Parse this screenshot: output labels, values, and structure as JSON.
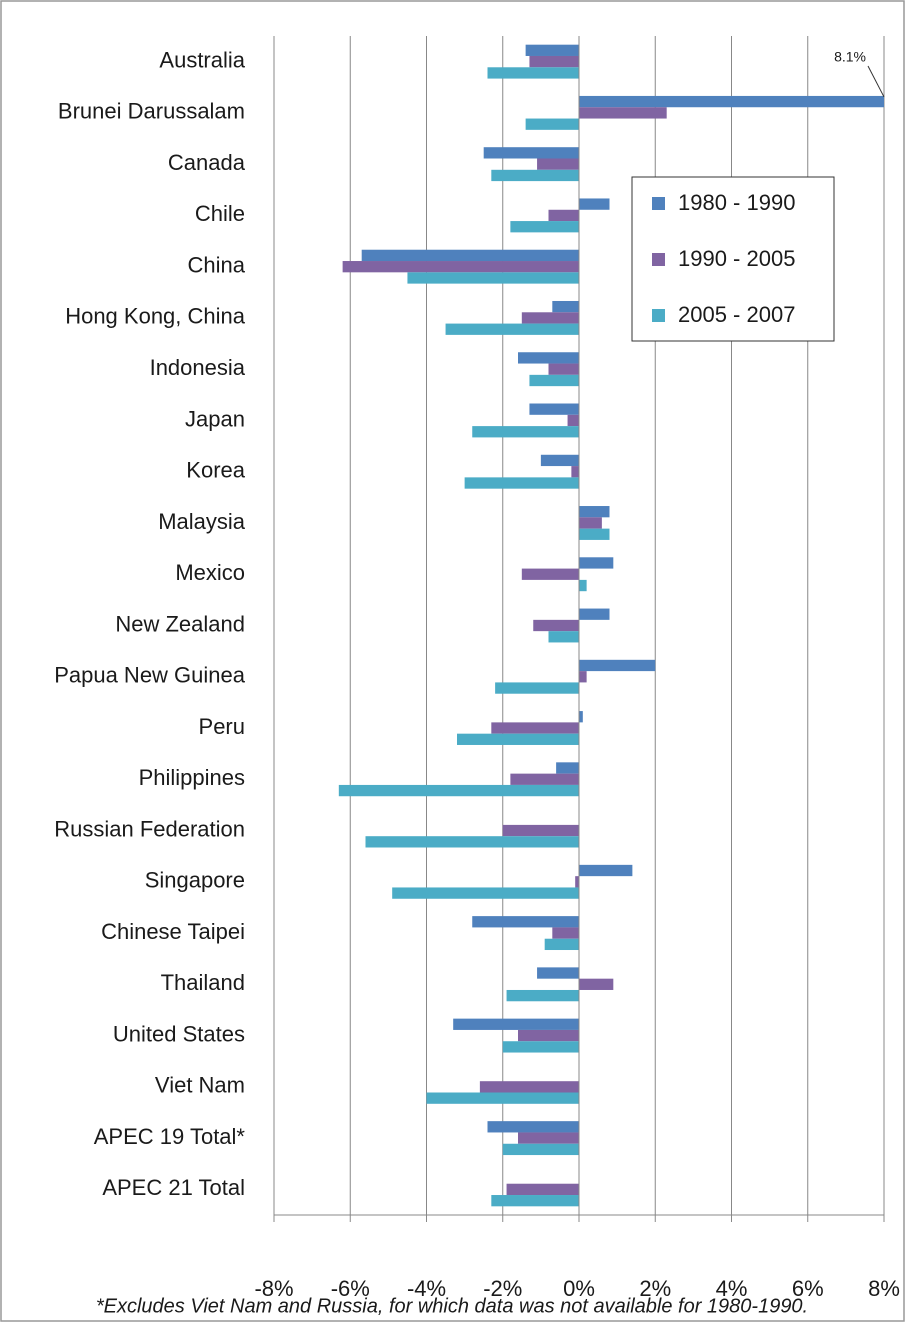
{
  "chart_data": {
    "type": "hbar",
    "categories": [
      "Australia",
      "Brunei Darussalam",
      "Canada",
      "Chile",
      "China",
      "Hong Kong, China",
      "Indonesia",
      "Japan",
      "Korea",
      "Malaysia",
      "Mexico",
      "New Zealand",
      "Papua New Guinea",
      "Peru",
      "Philippines",
      "Russian Federation",
      "Singapore",
      "Chinese Taipei",
      "Thailand",
      "United States",
      "Viet Nam",
      "APEC 19 Total*",
      "APEC 21 Total"
    ],
    "series": [
      {
        "name": "1980 - 1990",
        "color": "#4f81bd",
        "values": [
          -1.4,
          8.1,
          -2.5,
          0.8,
          -5.7,
          -0.7,
          -1.6,
          -1.3,
          -1.0,
          0.8,
          0.9,
          0.8,
          2.0,
          0.1,
          -0.6,
          null,
          1.4,
          -2.8,
          -1.1,
          -3.3,
          null,
          -2.4,
          null
        ],
        "value_labels": [
          null,
          "8.1%",
          null,
          null,
          null,
          null,
          null,
          null,
          null,
          null,
          null,
          null,
          null,
          null,
          null,
          null,
          null,
          null,
          null,
          null,
          null,
          null,
          null
        ]
      },
      {
        "name": "1990 - 2005",
        "color": "#8064a2",
        "values": [
          -1.3,
          2.3,
          -1.1,
          -0.8,
          -6.2,
          -1.5,
          -0.8,
          -0.3,
          -0.2,
          0.6,
          -1.5,
          -1.2,
          0.2,
          -2.3,
          -1.8,
          -2.0,
          -0.1,
          -0.7,
          0.9,
          -1.6,
          -2.6,
          -1.6,
          -1.9
        ]
      },
      {
        "name": "2005 - 2007",
        "color": "#4bacc6",
        "values": [
          -2.4,
          -1.4,
          -2.3,
          -1.8,
          -4.5,
          -3.5,
          -1.3,
          -2.8,
          -3.0,
          0.8,
          0.2,
          -0.8,
          -2.2,
          -3.2,
          -6.3,
          -5.6,
          -4.9,
          -0.9,
          -1.9,
          -2.0,
          -4.0,
          -2.0,
          -2.3
        ]
      }
    ],
    "xlim": [
      -8,
      8
    ],
    "xticks": [
      {
        "value": -8,
        "label": "-8%"
      },
      {
        "value": -6,
        "label": "-6%"
      },
      {
        "value": -4,
        "label": "-4%"
      },
      {
        "value": -2,
        "label": "-2%"
      },
      {
        "value": 0,
        "label": "0%"
      },
      {
        "value": 2,
        "label": "2%"
      },
      {
        "value": 4,
        "label": "4%"
      },
      {
        "value": 6,
        "label": "6%"
      },
      {
        "value": 8,
        "label": "8%"
      }
    ],
    "grid": true,
    "legend": "upper right",
    "footnote": "*Excludes Viet Nam and Russia, for which data was not available for 1980-1990."
  }
}
